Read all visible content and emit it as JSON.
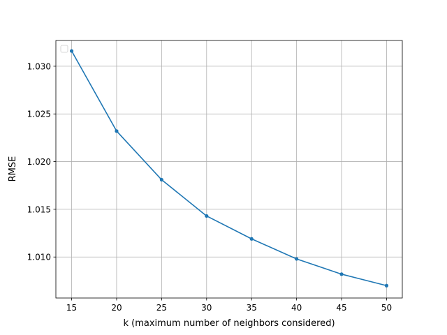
{
  "chart_data": {
    "type": "line",
    "title": "",
    "xlabel": "k (maximum number of neighbors considered)",
    "ylabel": "RMSE",
    "xlim": [
      13.25,
      51.75
    ],
    "ylim": [
      1.0057,
      1.0327
    ],
    "x": [
      15,
      20,
      25,
      30,
      35,
      40,
      45,
      50
    ],
    "series": [
      {
        "values": [
          1.0316,
          1.0232,
          1.0181,
          1.0143,
          1.0119,
          1.0098,
          1.0082,
          1.007
        ],
        "color": "#1f77b4",
        "marker": "dot"
      }
    ],
    "xticks": [
      15,
      20,
      25,
      30,
      35,
      40,
      45,
      50
    ],
    "xtick_labels": [
      "15",
      "20",
      "25",
      "30",
      "35",
      "40",
      "45",
      "50"
    ],
    "yticks": [
      1.01,
      1.015,
      1.02,
      1.025,
      1.03
    ],
    "ytick_labels": [
      "1.010",
      "1.015",
      "1.020",
      "1.025",
      "1.030"
    ],
    "grid": true,
    "legend": {
      "placement": "upper-left",
      "entries": []
    }
  }
}
